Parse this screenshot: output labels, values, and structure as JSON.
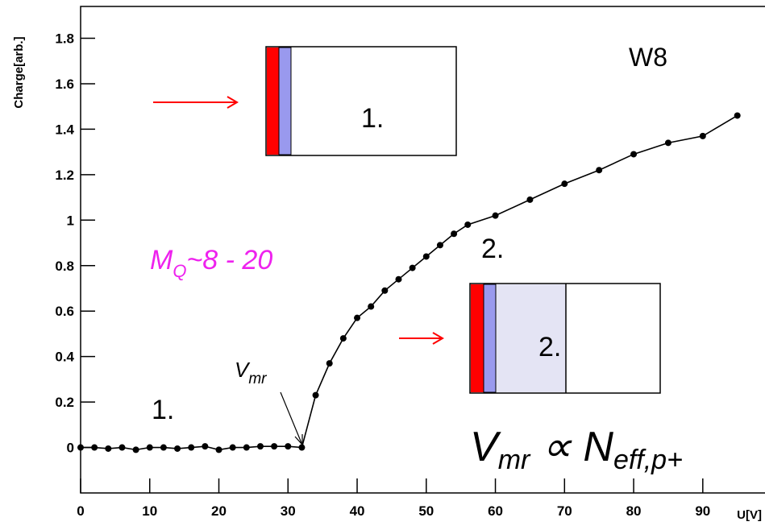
{
  "chart_data": {
    "type": "line",
    "xlabel": "U[V]",
    "ylabel": "Charge[arb.]",
    "x": [
      0,
      2,
      4,
      6,
      8,
      10,
      12,
      14,
      16,
      18,
      20,
      22,
      24,
      26,
      28,
      30,
      32,
      34,
      36,
      38,
      40,
      42,
      44,
      46,
      48,
      50,
      52,
      54,
      56,
      60,
      65,
      70,
      75,
      80,
      85,
      90,
      95
    ],
    "series": [
      {
        "color": "#000000",
        "values": [
          0,
          0,
          -0.005,
          0,
          -0.01,
          0,
          0,
          -0.005,
          0,
          0.005,
          -0.01,
          0,
          0,
          0.005,
          0.005,
          0.005,
          0,
          0.23,
          0.37,
          0.48,
          0.57,
          0.62,
          0.69,
          0.74,
          0.79,
          0.84,
          0.89,
          0.94,
          0.98,
          1.02,
          1.09,
          1.16,
          1.22,
          1.29,
          1.34,
          1.37,
          1.46
        ]
      }
    ],
    "xlim": [
      0,
      99
    ],
    "ylim": [
      -0.2,
      1.94
    ],
    "xticks": [
      0,
      10,
      20,
      30,
      40,
      50,
      60,
      70,
      80,
      90
    ],
    "yticks": [
      0,
      0.2,
      0.4,
      0.6,
      0.8,
      1,
      1.2,
      1.4,
      1.6,
      1.8
    ],
    "annotations": [
      {
        "parts": [
          "W8"
        ]
      },
      {
        "parts": [
          "1."
        ]
      },
      {
        "parts": [
          "2."
        ]
      },
      {
        "parts": [
          "M",
          "Q",
          "~8 - 20"
        ]
      },
      {
        "parts": [
          "V",
          "mr"
        ]
      },
      {
        "parts": [
          "V",
          "mr",
          " ∝ N",
          "eff,p+"
        ]
      }
    ],
    "diagram_labels": [
      "1.",
      "2."
    ]
  }
}
